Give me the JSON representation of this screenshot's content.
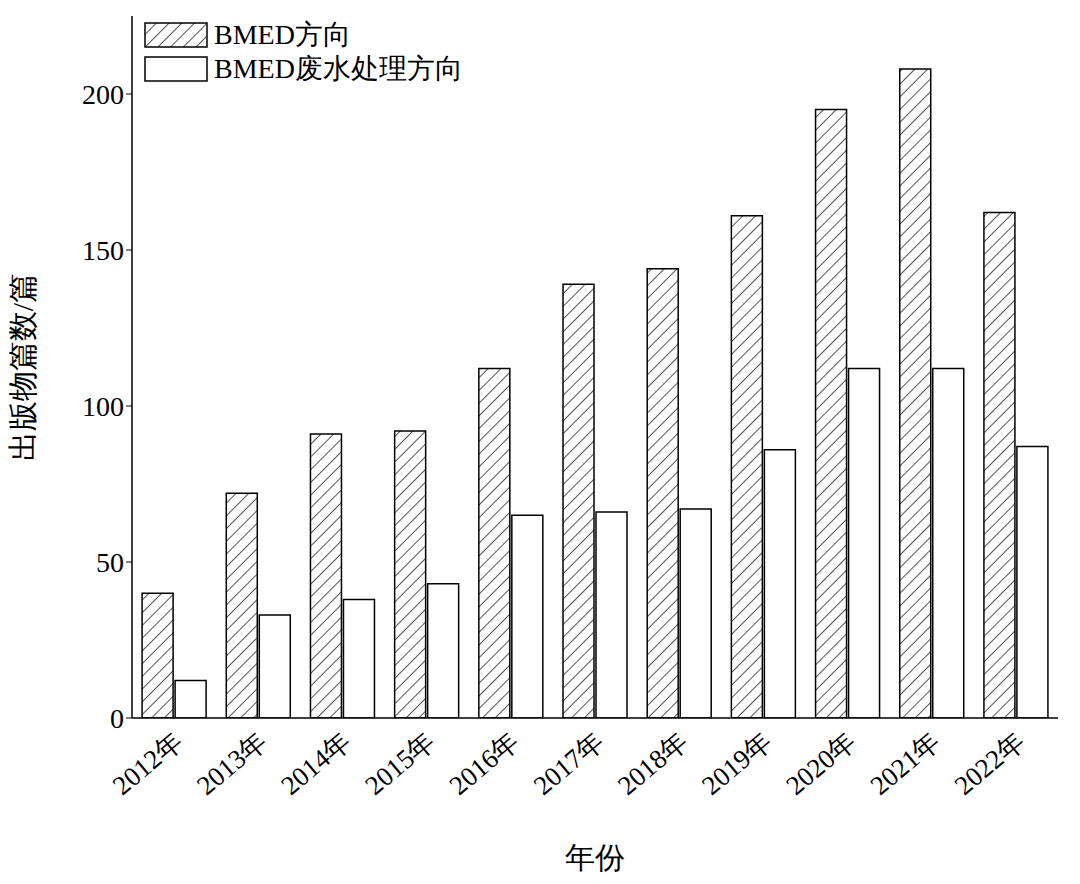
{
  "chart_data": {
    "type": "bar",
    "categories": [
      "2012年",
      "2013年",
      "2014年",
      "2015年",
      "2016年",
      "2017年",
      "2018年",
      "2019年",
      "2020年",
      "2021年",
      "2022年"
    ],
    "series": [
      {
        "name": "BMED方向",
        "color": "#555555",
        "values": [
          40,
          72,
          91,
          92,
          112,
          139,
          144,
          161,
          195,
          208,
          162
        ]
      },
      {
        "name": "BMED废水处理方向",
        "color": "#ffffff",
        "values": [
          12,
          33,
          38,
          43,
          65,
          66,
          67,
          86,
          112,
          112,
          87
        ]
      }
    ],
    "xlabel": "年份",
    "ylabel": "出版物篇数/篇",
    "ylim": [
      0,
      225
    ],
    "yticks": [
      0,
      50,
      100,
      150,
      200
    ],
    "grid": false,
    "legend": "upper left"
  }
}
